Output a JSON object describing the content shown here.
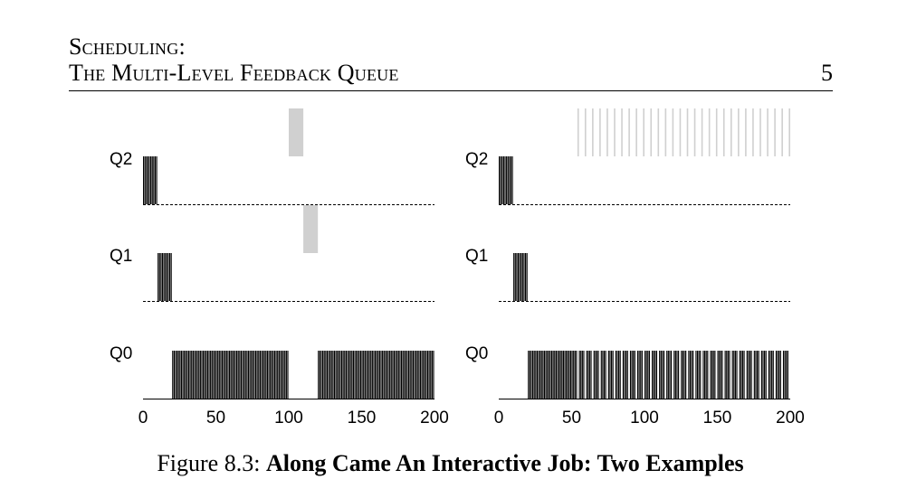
{
  "header": {
    "line1": "Scheduling:",
    "line2": "The Multi-Level Feedback Queue",
    "page_number": "5"
  },
  "caption": {
    "prefix": "Figure 8.3:",
    "title": "Along Came An Interactive Job: Two Examples"
  },
  "chart_data": [
    {
      "type": "bar",
      "panel": "left",
      "queues": [
        "Q2",
        "Q1",
        "Q0"
      ],
      "xticks": [
        0,
        50,
        100,
        150,
        200
      ],
      "xlim": [
        0,
        200
      ],
      "grid": false,
      "colors": {
        "long_job": "#000000",
        "interactive_job": "#d0d0d0"
      },
      "series": [
        {
          "queue": "Q2",
          "color": "#000000",
          "start": 0,
          "end": 10,
          "slice": 1
        },
        {
          "queue": "Q1",
          "color": "#000000",
          "start": 10,
          "end": 20,
          "slice": 1
        },
        {
          "queue": "Q0",
          "color": "#000000",
          "start": 20,
          "end": 100,
          "slice": 1
        },
        {
          "queue": "Q2",
          "color": "#d0d0d0",
          "start": 100,
          "end": 110,
          "slice": 10
        },
        {
          "queue": "Q1",
          "color": "#d0d0d0",
          "start": 110,
          "end": 120,
          "slice": 10
        },
        {
          "queue": "Q0",
          "color": "#000000",
          "start": 120,
          "end": 200,
          "slice": 1
        }
      ]
    },
    {
      "type": "bar",
      "panel": "right",
      "queues": [
        "Q2",
        "Q1",
        "Q0"
      ],
      "xticks": [
        0,
        50,
        100,
        150,
        200
      ],
      "xlim": [
        0,
        200
      ],
      "grid": false,
      "colors": {
        "long_job": "#000000",
        "interactive_job": "#d0d0d0"
      },
      "series": [
        {
          "queue": "Q2",
          "color": "#000000",
          "start": 0,
          "end": 10,
          "slice": 1
        },
        {
          "queue": "Q1",
          "color": "#000000",
          "start": 10,
          "end": 20,
          "slice": 1
        },
        {
          "queue": "Q0",
          "color": "#000000",
          "start": 20,
          "end": 50,
          "slice": 1
        },
        {
          "queue": "Q0",
          "color": "#000000",
          "start": 50,
          "end": 200,
          "slice": 1,
          "pattern": "interleaved",
          "period": 5,
          "gap": 1
        },
        {
          "queue": "Q2",
          "color": "#d0d0d0",
          "start": 50,
          "end": 200,
          "slice": 1,
          "pattern": "interleaved",
          "period": 5,
          "gap": 1
        }
      ]
    }
  ]
}
